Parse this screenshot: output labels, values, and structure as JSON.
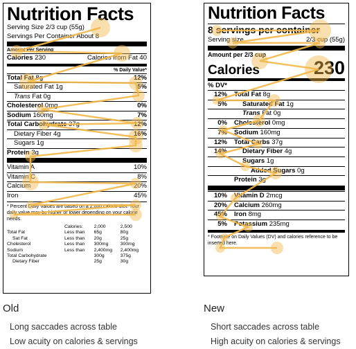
{
  "old_label": {
    "title": "Nutrition Facts",
    "serving_size": "Serving Size 2/3 cup (55g)",
    "servings_per_container": "Servings Per Container About 8",
    "amount_per_serving": "Amount Per Serving",
    "calories_label": "Calories",
    "calories_value": "230",
    "calories_fat": "Calories from Fat 40",
    "daily_value_header": "% Daily Value*",
    "rows": [
      {
        "name": "Total Fat",
        "amount": "8g",
        "dv": "12%",
        "bold": true,
        "indent": 0,
        "italic": false
      },
      {
        "name": "Saturated Fat",
        "amount": "1g",
        "dv": "5%",
        "bold": false,
        "indent": 1,
        "italic": false
      },
      {
        "name": "Trans",
        "amount": "Fat 0g",
        "dv": "",
        "bold": false,
        "indent": 1,
        "italic": true
      },
      {
        "name": "Cholesterol",
        "amount": "0mg",
        "dv": "0%",
        "bold": true,
        "indent": 0,
        "italic": false
      },
      {
        "name": "Sodium",
        "amount": "160mg",
        "dv": "7%",
        "bold": true,
        "indent": 0,
        "italic": false
      },
      {
        "name": "Total Carbohydrate",
        "amount": "37g",
        "dv": "12%",
        "bold": true,
        "indent": 0,
        "italic": false
      },
      {
        "name": "Dietary Fiber",
        "amount": "4g",
        "dv": "16%",
        "bold": false,
        "indent": 1,
        "italic": false
      },
      {
        "name": "Sugars",
        "amount": "1g",
        "dv": "",
        "bold": false,
        "indent": 1,
        "italic": false
      },
      {
        "name": "Protein",
        "amount": "3g",
        "dv": "",
        "bold": true,
        "indent": 0,
        "italic": false
      }
    ],
    "vitamins": [
      {
        "name": "Vitamin A",
        "dv": "10%"
      },
      {
        "name": "Vitamin C",
        "dv": "8%"
      },
      {
        "name": "Calcium",
        "dv": "20%"
      },
      {
        "name": "Iron",
        "dv": "45%"
      }
    ],
    "footnote": "* Percent Daily Values are based on a 2,000 calorie diet. Your daily value may be higher or lower depending on your calorie needs.",
    "foot_table": {
      "header": [
        "",
        "Calories:",
        "2,000",
        "2,500"
      ],
      "rows": [
        [
          "Total Fat",
          "Less than",
          "65g",
          "80g"
        ],
        [
          "Sat Fat",
          "Less than",
          "20g",
          "25g"
        ],
        [
          "Cholesterol",
          "Less than",
          "300mg",
          "300mg"
        ],
        [
          "Sodium",
          "Less than",
          "2,400mg",
          "2,400mg"
        ],
        [
          "Total Carbohydrate",
          "",
          "300g",
          "375g"
        ],
        [
          "Dietary Fiber",
          "",
          "25g",
          "30g"
        ]
      ]
    }
  },
  "new_label": {
    "title": "Nutrition Facts",
    "servings": "8 servings per container",
    "serving_size_label": "Serving size",
    "serving_size_value": "2/3 cup (55g)",
    "amount_per": "Amount per 2/3 cup",
    "calories_label": "Calories",
    "calories_value": "230",
    "dv_header": "% DV*",
    "rows": [
      {
        "dv": "12%",
        "name": "Total Fat",
        "amount": "8g",
        "indent": 0
      },
      {
        "dv": "5%",
        "name": "Saturated Fat",
        "amount": "1g",
        "indent": 1
      },
      {
        "dv": "",
        "name": "Trans",
        "amount": "Fat 0g",
        "indent": 1,
        "italic": true
      },
      {
        "dv": "0%",
        "name": "Cholesterol",
        "amount": "0mg",
        "indent": 0
      },
      {
        "dv": "7%",
        "name": "Sodium",
        "amount": "160mg",
        "indent": 0
      },
      {
        "dv": "12%",
        "name": "Total Carbs",
        "amount": "37g",
        "indent": 0
      },
      {
        "dv": "14%",
        "name": "Dietary Fiber",
        "amount": "4g",
        "indent": 1
      },
      {
        "dv": "",
        "name": "Sugars",
        "amount": "1g",
        "indent": 1
      },
      {
        "dv": "",
        "name": "Added Sugars",
        "amount": "0g",
        "indent": 2
      },
      {
        "dv": "",
        "name": "Protein",
        "amount": "3g",
        "indent": 0
      }
    ],
    "vitamins": [
      {
        "dv": "10%",
        "name": "Vitamin D",
        "amount": "2mcg"
      },
      {
        "dv": "20%",
        "name": "Calcium",
        "amount": "260mg"
      },
      {
        "dv": "45%",
        "name": "Iron",
        "amount": "8mg"
      },
      {
        "dv": "5%",
        "name": "Potassium",
        "amount": "235mg"
      }
    ],
    "footnote": "* Footnote on Daily Values (DV) and calories reference to be inserted here."
  },
  "captions": {
    "old_title": "Old",
    "old_line1": "Long saccades across table",
    "old_line2": "Low acuity on calories & servings",
    "new_title": "New",
    "new_line1": "Short saccades across table",
    "new_line2": "High acuity on calories & servings"
  },
  "overlay_color": "#f2b84b"
}
